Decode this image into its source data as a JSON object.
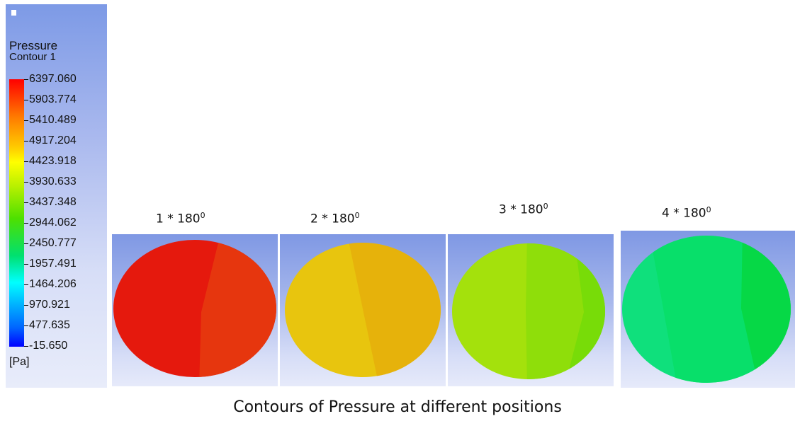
{
  "legend": {
    "title": "Pressure",
    "subtitle": "Contour 1",
    "ticks": [
      "6397.060",
      "5903.774",
      "5410.489",
      "4917.204",
      "4423.918",
      "3930.633",
      "3437.348",
      "2944.062",
      "2450.777",
      "1957.491",
      "1464.206",
      "970.921",
      "477.635",
      "-15.650"
    ],
    "unit": "[Pa]",
    "colors": {
      "max": "#ff0000",
      "mid": "#00ff00",
      "min": "#0000ff"
    }
  },
  "panels": [
    {
      "label_base": "1 * 180",
      "label_exp": "0",
      "left_color": "#e5190d",
      "right_color": "#e6360e",
      "pressure_level": 0.97
    },
    {
      "label_base": "2 * 180",
      "label_exp": "0",
      "left_color": "#e8c50e",
      "right_color": "#e6b20b",
      "pressure_level": 0.72
    },
    {
      "label_base": "3 * 180",
      "label_exp": "0",
      "left_color": "#a4e10c",
      "right_color": "#8fde0a",
      "side_color": "#78dc08",
      "pressure_level": 0.58
    },
    {
      "label_base": "4 * 180",
      "label_exp": "0",
      "left_color": "#0fe07c",
      "right_color": "#08df6a",
      "side_color": "#06d846",
      "pressure_level": 0.46
    }
  ],
  "caption": "Contours of Pressure at different positions"
}
